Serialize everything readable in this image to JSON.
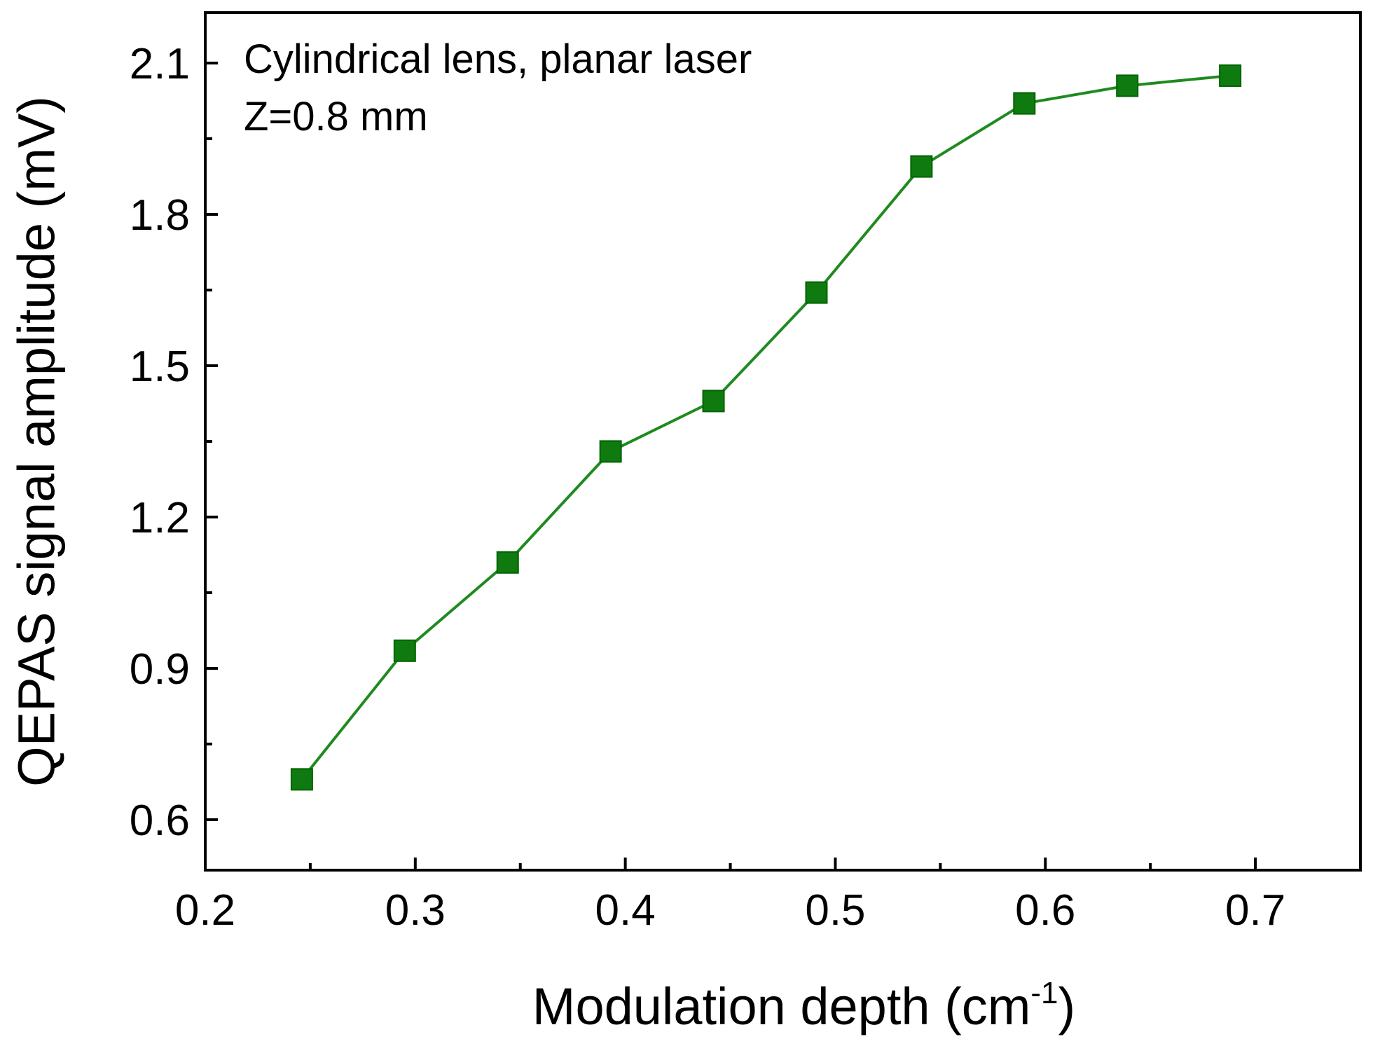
{
  "chart_data": {
    "type": "line",
    "title": "",
    "xlabel": "Modulation depth (cm",
    "xlabel_superscript": "-1",
    "xlabel_suffix": ")",
    "ylabel": "QEPAS signal amplitude (mV)",
    "xlim": [
      0.2,
      0.75
    ],
    "ylim": [
      0.5,
      2.2
    ],
    "xticks": [
      0.2,
      0.3,
      0.4,
      0.5,
      0.6,
      0.7
    ],
    "xtick_labels": [
      "0.2",
      "0.3",
      "0.4",
      "0.5",
      "0.6",
      "0.7"
    ],
    "yticks": [
      0.6,
      0.9,
      1.2,
      1.5,
      1.8,
      2.1
    ],
    "ytick_labels": [
      "0.6",
      "0.9",
      "1.2",
      "1.5",
      "1.8",
      "2.1"
    ],
    "annotations": [
      "Cylindrical lens, planar laser",
      "Z=0.8 mm"
    ],
    "grid": false,
    "series": [
      {
        "name": "QEPAS signal",
        "color": "#1f8a1f",
        "marker": "square",
        "x": [
          0.246,
          0.295,
          0.344,
          0.393,
          0.442,
          0.491,
          0.541,
          0.59,
          0.639,
          0.688
        ],
        "values": [
          0.68,
          0.935,
          1.11,
          1.33,
          1.43,
          1.645,
          1.895,
          2.02,
          2.055,
          2.075
        ]
      }
    ]
  }
}
